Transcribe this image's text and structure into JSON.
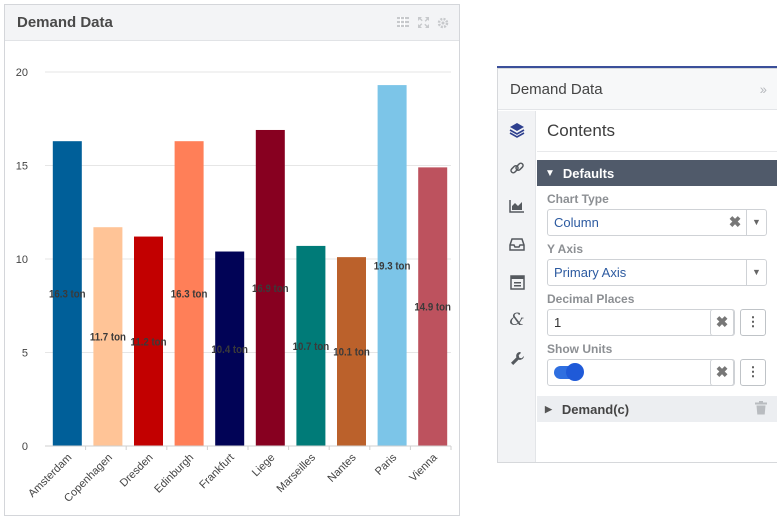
{
  "widget": {
    "title": "Demand Data",
    "icons": [
      "table-icon",
      "expand-icon",
      "settings-icon"
    ]
  },
  "chart_data": {
    "type": "bar",
    "categories": [
      "Amsterdam",
      "Copenhagen",
      "Dresden",
      "Edinburgh",
      "Frankfurt",
      "Liege",
      "Marseilles",
      "Nantes",
      "Paris",
      "Vienna"
    ],
    "values": [
      16.3,
      11.7,
      11.2,
      16.3,
      10.4,
      16.9,
      10.7,
      10.1,
      19.3,
      14.9
    ],
    "data_labels": [
      "16.3 ton",
      "11.7 ton",
      "11.2 ton",
      "16.3 ton",
      "10.4 ton",
      "16.9 ton",
      "10.7 ton",
      "10.1 ton",
      "19.3 ton",
      "14.9 ton"
    ],
    "colors": [
      "#005f99",
      "#ffc497",
      "#c20000",
      "#ff7f58",
      "#010356",
      "#870020",
      "#007b78",
      "#bb612b",
      "#7cc5e8",
      "#bd525e"
    ],
    "yticks": [
      "0",
      "5",
      "10",
      "15",
      "20"
    ],
    "ylim": [
      0,
      20
    ],
    "grid": true,
    "title": "",
    "xlabel": "",
    "ylabel": ""
  },
  "panel": {
    "title": "Demand Data",
    "collapse_icon": "double-chevron-right-icon",
    "rail_icons": [
      "layers-icon",
      "link-icon",
      "area-chart-icon",
      "inbox-icon",
      "form-icon",
      "ampersand-icon",
      "wrench-icon"
    ],
    "content_title": "Contents",
    "defaults_label": "Defaults",
    "chart_type_label": "Chart Type",
    "chart_type_value": "Column",
    "y_axis_label": "Y Axis",
    "y_axis_value": "Primary Axis",
    "decimal_label": "Decimal Places",
    "decimal_value": "1",
    "units_label": "Show Units",
    "show_units": true,
    "series_label": "Demand(c)"
  }
}
